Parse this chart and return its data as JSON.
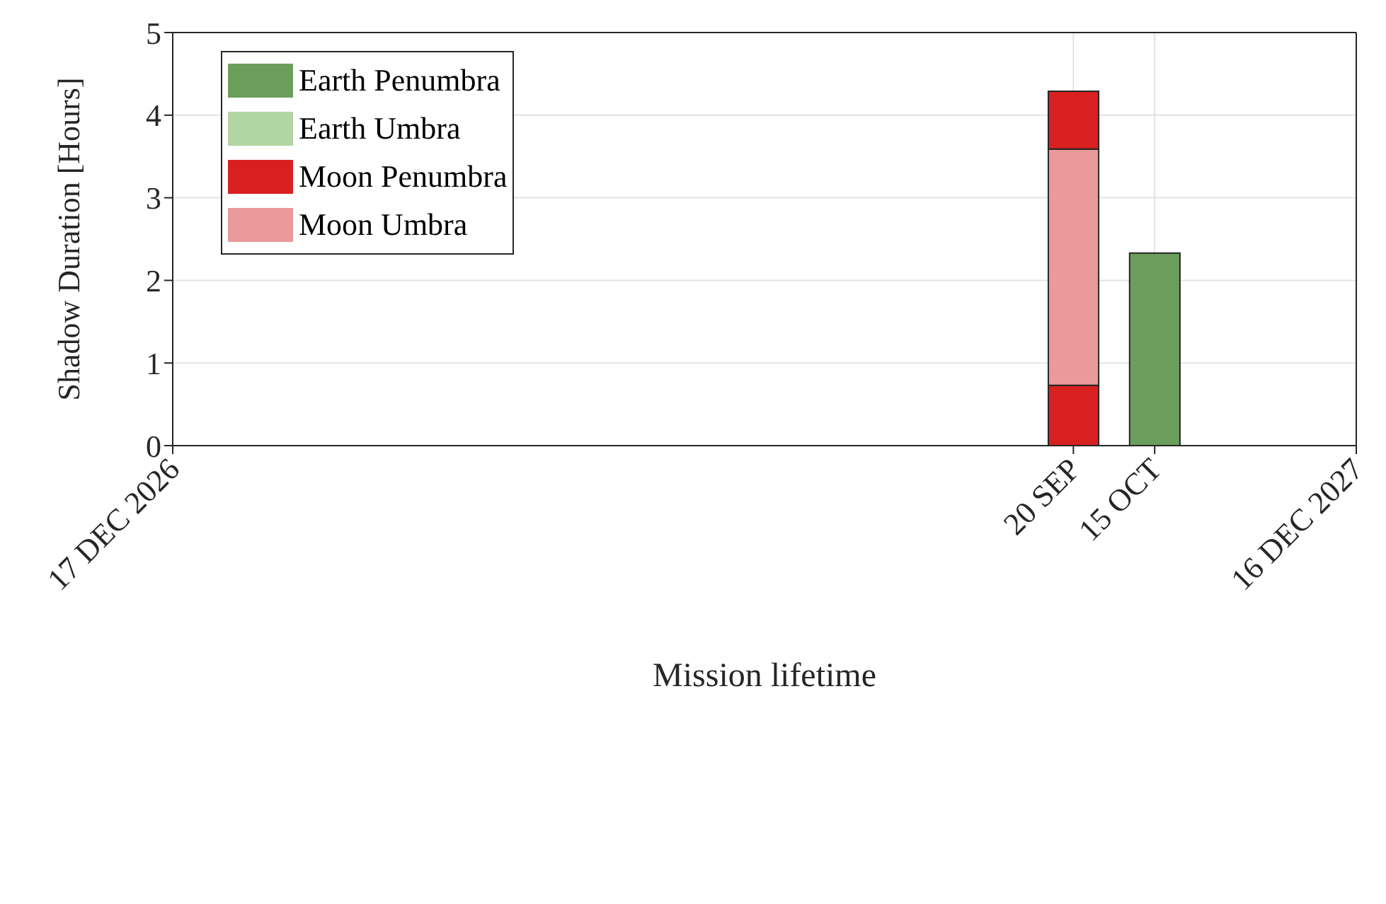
{
  "chart_data": {
    "type": "bar",
    "stacked": true,
    "xlabel": "Mission lifetime",
    "ylabel": "Shadow Duration [Hours]",
    "x": [
      "2027-09-20",
      "2027-10-15"
    ],
    "xlim": [
      "2026-12-17",
      "2027-12-16"
    ],
    "xticks": [
      {
        "value": "2026-12-17",
        "label": "17 DEC 2026"
      },
      {
        "value": "2027-09-20",
        "label": "20 SEP"
      },
      {
        "value": "2027-10-15",
        "label": "15 OCT"
      },
      {
        "value": "2027-12-16",
        "label": "16 DEC 2027"
      }
    ],
    "ylim": [
      0,
      5
    ],
    "yticks": [
      0,
      1,
      2,
      3,
      4,
      5
    ],
    "grid": true,
    "legend": "top left",
    "series": [
      {
        "name": "Earth Penumbra",
        "color": "#6c9e5b",
        "values": [
          null,
          2.33
        ]
      },
      {
        "name": "Earth Umbra",
        "color": "#b2d6a3",
        "values": [
          null,
          null
        ]
      },
      {
        "name": "Moon Penumbra",
        "color": "#d92020",
        "values": [
          0.73,
          null
        ]
      },
      {
        "name": "Moon Umbra",
        "color": "#ea9a9a",
        "values": [
          2.86,
          null
        ]
      },
      {
        "color": "#d92020",
        "values": [
          0.7,
          null
        ]
      }
    ]
  }
}
